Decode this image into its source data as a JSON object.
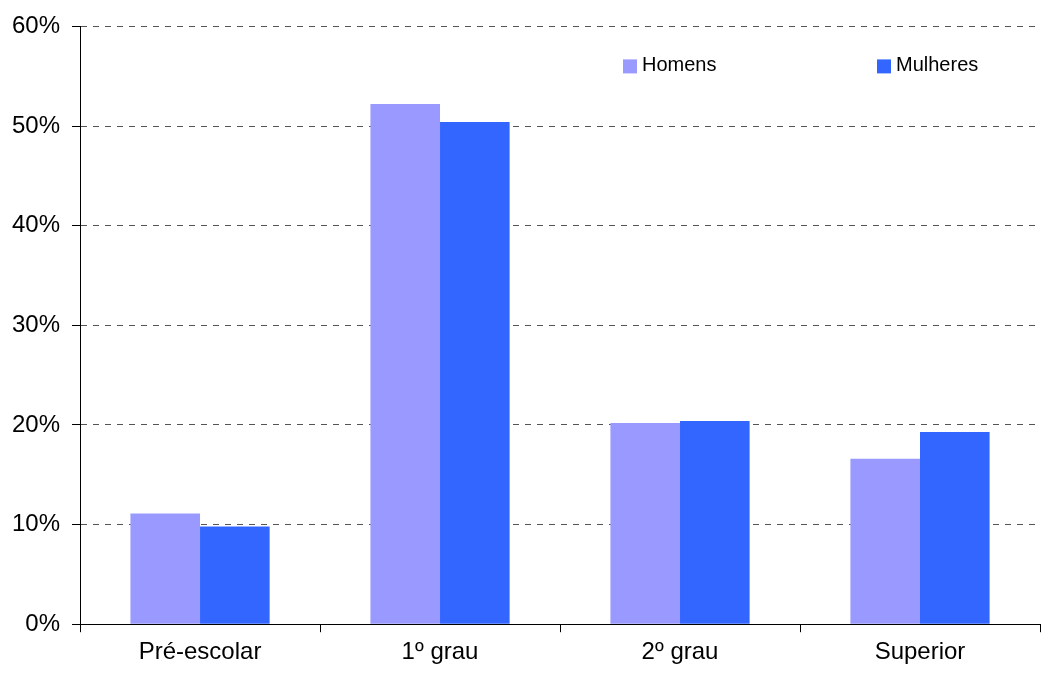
{
  "chart_data": {
    "type": "bar",
    "categories": [
      "Pré-escolar",
      "1º grau",
      "2º grau",
      "Superior"
    ],
    "series": [
      {
        "name": "Homens",
        "color": "#9999ff",
        "values": [
          11.1,
          52.2,
          20.2,
          16.6
        ]
      },
      {
        "name": "Mulheres",
        "color": "#3366ff",
        "values": [
          9.8,
          50.4,
          20.4,
          19.3
        ]
      }
    ],
    "ylim": [
      0,
      60
    ],
    "yticks": [
      {
        "value": 0,
        "label": "0%"
      },
      {
        "value": 10,
        "label": "10%"
      },
      {
        "value": 20,
        "label": "20%"
      },
      {
        "value": 30,
        "label": "30%"
      },
      {
        "value": 40,
        "label": "40%"
      },
      {
        "value": 50,
        "label": "50%"
      },
      {
        "value": 60,
        "label": "60%"
      }
    ],
    "grid": "y",
    "legend": "top right"
  }
}
